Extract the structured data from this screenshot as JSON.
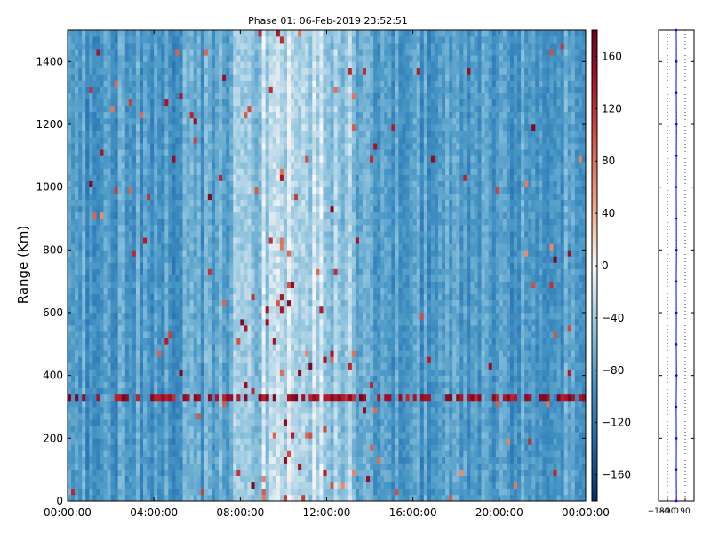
{
  "chart_data": [
    {
      "type": "heatmap",
      "title": "Phase 01: 06-Feb-2019 23:52:51",
      "xlabel": "",
      "ylabel": "Range (Km)",
      "x_ticks": [
        "00:00:00",
        "04:00:00",
        "08:00:00",
        "12:00:00",
        "16:00:00",
        "20:00:00",
        "00:00:00"
      ],
      "x_range_hours": [
        0,
        24
      ],
      "y_ticks": [
        0,
        200,
        400,
        600,
        800,
        1000,
        1200,
        1400
      ],
      "ylim": [
        0,
        1500
      ],
      "colormap": "RdBu_r",
      "value_range": [
        -180,
        180
      ],
      "description_of_values": "phase values in degrees; mostly negative (blue) with whiter/near-zero values around 08:00–14:00 and scattered red outliers; a row of strong red values near 320 Km",
      "hot_row_range_km": 320,
      "grid": false
    },
    {
      "type": "colorbar",
      "ticks": [
        -160,
        -120,
        -80,
        -40,
        0,
        40,
        80,
        120,
        160
      ],
      "range": [
        -180,
        180
      ]
    },
    {
      "type": "line",
      "x_ticks": [
        "-180",
        "-90",
        "0",
        "90"
      ],
      "xlim": [
        -180,
        180
      ],
      "ylim": [
        0,
        1500
      ],
      "grid": true,
      "series": [
        {
          "range_km": [
            0,
            100,
            200,
            300,
            400,
            500,
            600,
            700,
            800,
            900,
            1000,
            1100,
            1200,
            1300,
            1400,
            1500
          ],
          "phase_deg": [
            2,
            0,
            1,
            -1,
            2,
            0,
            1,
            0,
            2,
            1,
            0,
            1,
            2,
            0,
            1,
            0
          ]
        }
      ]
    }
  ],
  "colors": {
    "line_color": "#0000ff",
    "axis_color": "#000000"
  }
}
